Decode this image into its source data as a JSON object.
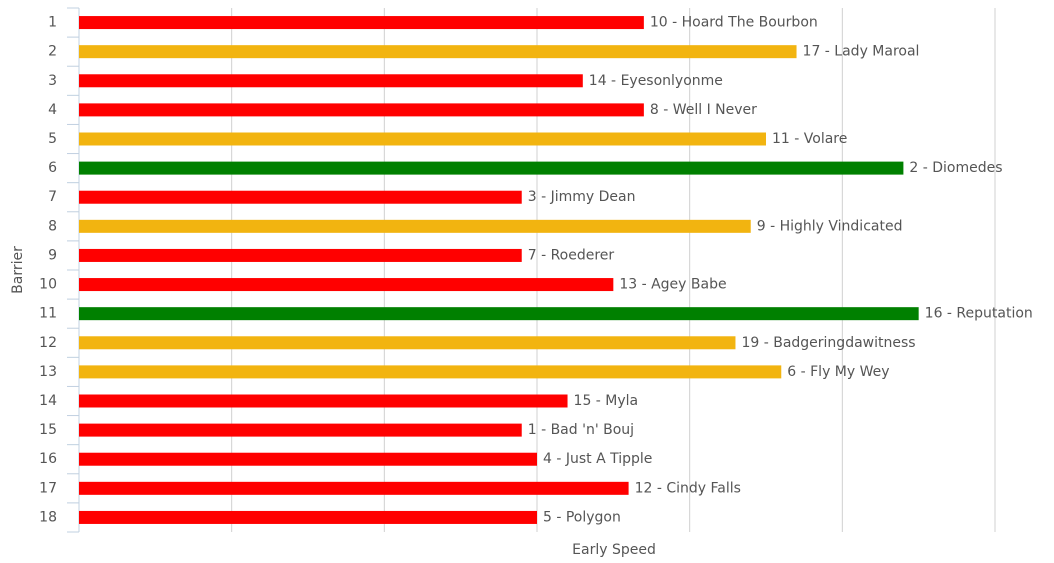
{
  "chart_data": {
    "type": "hbar",
    "xlabel": "Early Speed",
    "ylabel": "Barrier",
    "categories": [
      "1",
      "2",
      "3",
      "4",
      "5",
      "6",
      "7",
      "8",
      "9",
      "10",
      "11",
      "12",
      "13",
      "14",
      "15",
      "16",
      "17",
      "18"
    ],
    "values": [
      3.7,
      4.7,
      3.3,
      3.7,
      4.5,
      5.4,
      2.9,
      4.4,
      2.9,
      3.5,
      5.5,
      4.3,
      4.6,
      3.2,
      2.9,
      3.0,
      3.6,
      3.0
    ],
    "bar_labels": [
      "10 - Hoard The Bourbon",
      "17 - Lady Maroal",
      "14 - Eyesonlyonme",
      "8 - Well I Never",
      "11 - Volare",
      "2 - Diomedes",
      "3 - Jimmy Dean",
      "9 - Highly Vindicated",
      "7 - Roederer",
      "13 - Agey Babe",
      "16 - Reputation",
      "19 - Badgeringdawitness",
      "6 - Fly My Wey",
      "15 - Myla",
      "1 - Bad 'n' Bouj",
      "4 - Just A Tipple",
      "12 - Cindy Falls",
      "5 - Polygon"
    ],
    "colors": [
      "#ff0000",
      "#f2b410",
      "#ff0000",
      "#ff0000",
      "#f2b410",
      "#008000",
      "#ff0000",
      "#f2b410",
      "#ff0000",
      "#ff0000",
      "#008000",
      "#f2b410",
      "#f2b410",
      "#ff0000",
      "#ff0000",
      "#ff0000",
      "#ff0000",
      "#ff0000"
    ],
    "xlim": [
      0,
      6
    ],
    "xticks": [
      0,
      1,
      2,
      3,
      4,
      5,
      6
    ],
    "grid": true
  }
}
